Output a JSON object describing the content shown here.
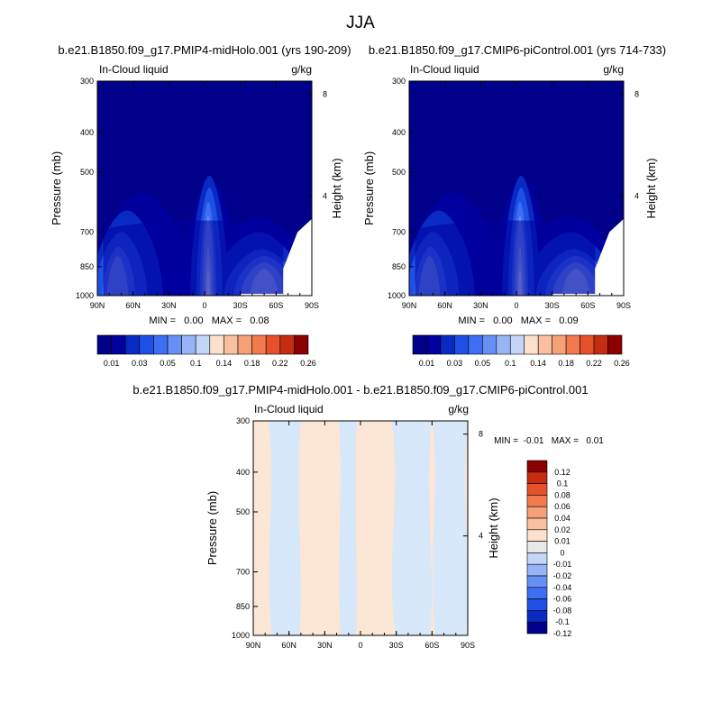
{
  "figure_title": "JJA",
  "chart_data": [
    {
      "type": "heatmap",
      "title": "b.e21.B1850.f09_g17.PMIP4-midHolo.001 (yrs 190-209)",
      "left_label": "In-Cloud liquid",
      "unit": "g/kg",
      "ylabel": "Pressure (mb)",
      "right_label": "Height (km)",
      "x_ticks": [
        "90N",
        "60N",
        "30N",
        "0",
        "30S",
        "60S",
        "90S"
      ],
      "x_values": [
        90,
        60,
        30,
        0,
        -30,
        -60,
        -90
      ],
      "y_ticks": [
        300,
        400,
        500,
        700,
        850,
        1000
      ],
      "height_ticks": [
        8,
        4
      ],
      "ylim": [
        1000,
        300
      ],
      "xlim": [
        90,
        -90
      ],
      "y_scale": "log",
      "min_max_text": "MIN =   0.00   MAX =   0.08",
      "stats": {
        "min": 0.0,
        "max": 0.08
      },
      "colorbar": {
        "orientation": "horizontal",
        "levels": [
          0.01,
          0.02,
          0.03,
          0.04,
          0.05,
          0.06,
          0.1,
          0.12,
          0.14,
          0.16,
          0.18,
          0.2,
          0.22,
          0.24,
          0.26
        ],
        "labels": [
          "0.01",
          "0.03",
          "0.05",
          "0.1",
          "0.14",
          "0.18",
          "0.22",
          "0.26"
        ]
      },
      "features": [
        {
          "lat": -3,
          "top_p": 485,
          "peak": 0.08
        },
        {
          "lat": 73,
          "top_p": 760,
          "peak": 0.05
        },
        {
          "lat": -50,
          "top_p": 780,
          "peak": 0.05
        }
      ]
    },
    {
      "type": "heatmap",
      "title": "b.e21.B1850.f09_g17.CMIP6-piControl.001 (yrs 714-733)",
      "left_label": "In-Cloud liquid",
      "unit": "g/kg",
      "ylabel": "Pressure (mb)",
      "right_label": "Height (km)",
      "x_ticks": [
        "90N",
        "60N",
        "30N",
        "0",
        "30S",
        "60S",
        "90S"
      ],
      "x_values": [
        90,
        60,
        30,
        0,
        -30,
        -60,
        -90
      ],
      "y_ticks": [
        300,
        400,
        500,
        700,
        850,
        1000
      ],
      "height_ticks": [
        8,
        4
      ],
      "ylim": [
        1000,
        300
      ],
      "xlim": [
        90,
        -90
      ],
      "y_scale": "log",
      "min_max_text": "MIN =   0.00   MAX =   0.09",
      "stats": {
        "min": 0.0,
        "max": 0.09
      },
      "colorbar": {
        "orientation": "horizontal",
        "levels": [
          0.01,
          0.02,
          0.03,
          0.04,
          0.05,
          0.06,
          0.1,
          0.12,
          0.14,
          0.16,
          0.18,
          0.2,
          0.22,
          0.24,
          0.26
        ],
        "labels": [
          "0.01",
          "0.03",
          "0.05",
          "0.1",
          "0.14",
          "0.18",
          "0.22",
          "0.26"
        ]
      },
      "features": [
        {
          "lat": -3,
          "top_p": 485,
          "peak": 0.09
        },
        {
          "lat": 73,
          "top_p": 760,
          "peak": 0.05
        },
        {
          "lat": -50,
          "top_p": 780,
          "peak": 0.05
        }
      ]
    },
    {
      "type": "heatmap",
      "title": "b.e21.B1850.f09_g17.PMIP4-midHolo.001 - b.e21.B1850.f09_g17.CMIP6-piControl.001",
      "left_label": "In-Cloud liquid",
      "unit": "g/kg",
      "ylabel": "Pressure (mb)",
      "right_label": "Height (km)",
      "x_ticks": [
        "90N",
        "60N",
        "30N",
        "0",
        "30S",
        "60S",
        "90S"
      ],
      "x_values": [
        90,
        60,
        30,
        0,
        -30,
        -60,
        -90
      ],
      "y_ticks": [
        300,
        400,
        500,
        700,
        850,
        1000
      ],
      "height_ticks": [
        8,
        4
      ],
      "ylim": [
        1000,
        300
      ],
      "xlim": [
        90,
        -90
      ],
      "y_scale": "log",
      "min_max_text": "MIN =  -0.01   MAX =   0.01",
      "stats": {
        "min": -0.01,
        "max": 0.01
      },
      "colorbar": {
        "orientation": "vertical",
        "labels": [
          "0.12",
          "0.1",
          "0.08",
          "0.06",
          "0.04",
          "0.02",
          "0.01",
          "0",
          "-0.01",
          "-0.02",
          "-0.04",
          "-0.06",
          "-0.08",
          "-0.1",
          "-0.12"
        ]
      },
      "regions": [
        {
          "lat_from": 90,
          "lat_to": 77,
          "sign": "positive"
        },
        {
          "lat_from": 77,
          "lat_to": 50,
          "sign": "negative"
        },
        {
          "lat_from": 50,
          "lat_to": 18,
          "sign": "positive"
        },
        {
          "lat_from": 18,
          "lat_to": 3,
          "sign": "negative"
        },
        {
          "lat_from": 3,
          "lat_to": -26,
          "sign": "positive"
        },
        {
          "lat_from": -26,
          "lat_to": -60,
          "sign": "negative"
        },
        {
          "lat_from": -60,
          "lat_to": -90,
          "sign": "negative"
        }
      ]
    }
  ],
  "colors": {
    "seq": [
      "#00008B",
      "#00009E",
      "#0A2AC4",
      "#1E50E6",
      "#3E6EF4",
      "#6890F4",
      "#96B4F6",
      "#C4D6F8",
      "#FCE0CC",
      "#F8C0A0",
      "#F6A078",
      "#F27A4E",
      "#E6502A",
      "#C62C10",
      "#8C0000"
    ],
    "diverging": [
      "#8C0000",
      "#C62C10",
      "#E6502A",
      "#F27A4E",
      "#F6A078",
      "#F8C0A0",
      "#FCE0CC",
      "#E8E8E8",
      "#C4D6F8",
      "#96B4F6",
      "#6890F4",
      "#3E6EF4",
      "#1E50E6",
      "#0A2AC4",
      "#00008B"
    ],
    "pos_fill": "#FCE6D6",
    "neg_fill": "#D6E8FA"
  }
}
